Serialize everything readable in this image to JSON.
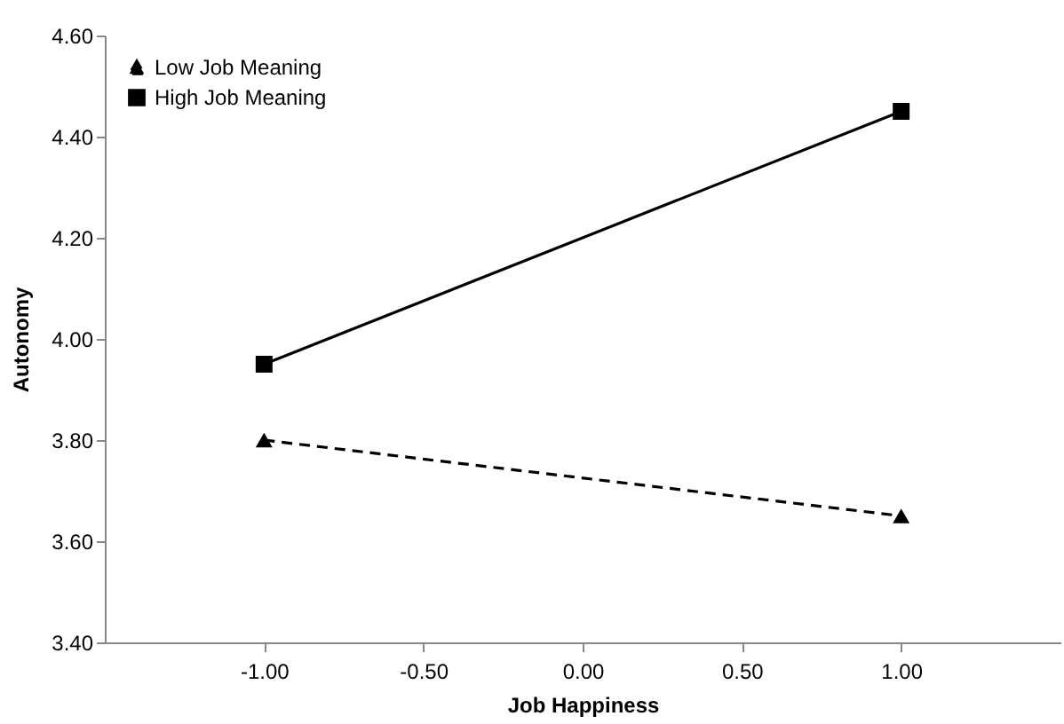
{
  "chart_data": {
    "type": "line",
    "xlabel": "Job Happiness",
    "ylabel": "Autonomy",
    "x": [
      -1,
      1
    ],
    "series": [
      {
        "name": "Low Job Meaning",
        "color": "#000000",
        "values": [
          3.8,
          3.65
        ],
        "marker": "triangle",
        "line_style": "dashed"
      },
      {
        "name": "High Job Meaning",
        "color": "#000000",
        "values": [
          3.95,
          4.45
        ],
        "marker": "square",
        "line_style": "solid"
      }
    ],
    "xlim": [
      -1.5,
      1.5
    ],
    "xticks": [
      {
        "value": -1,
        "label": "-1.00"
      },
      {
        "value": -0.5,
        "label": "-0.50"
      },
      {
        "value": 0,
        "label": "0.00"
      },
      {
        "value": 0.5,
        "label": "0.50"
      },
      {
        "value": 1,
        "label": "1.00"
      }
    ],
    "ylim": [
      3.4,
      4.6
    ],
    "yticks": [
      {
        "value": 3.4,
        "label": "3.40"
      },
      {
        "value": 3.6,
        "label": "3.60"
      },
      {
        "value": 3.8,
        "label": "3.80"
      },
      {
        "value": 4.0,
        "label": "4.00"
      },
      {
        "value": 4.2,
        "label": "4.20"
      },
      {
        "value": 4.4,
        "label": "4.40"
      },
      {
        "value": 4.6,
        "label": "4.60"
      }
    ],
    "grid": false,
    "legend": "top left"
  }
}
